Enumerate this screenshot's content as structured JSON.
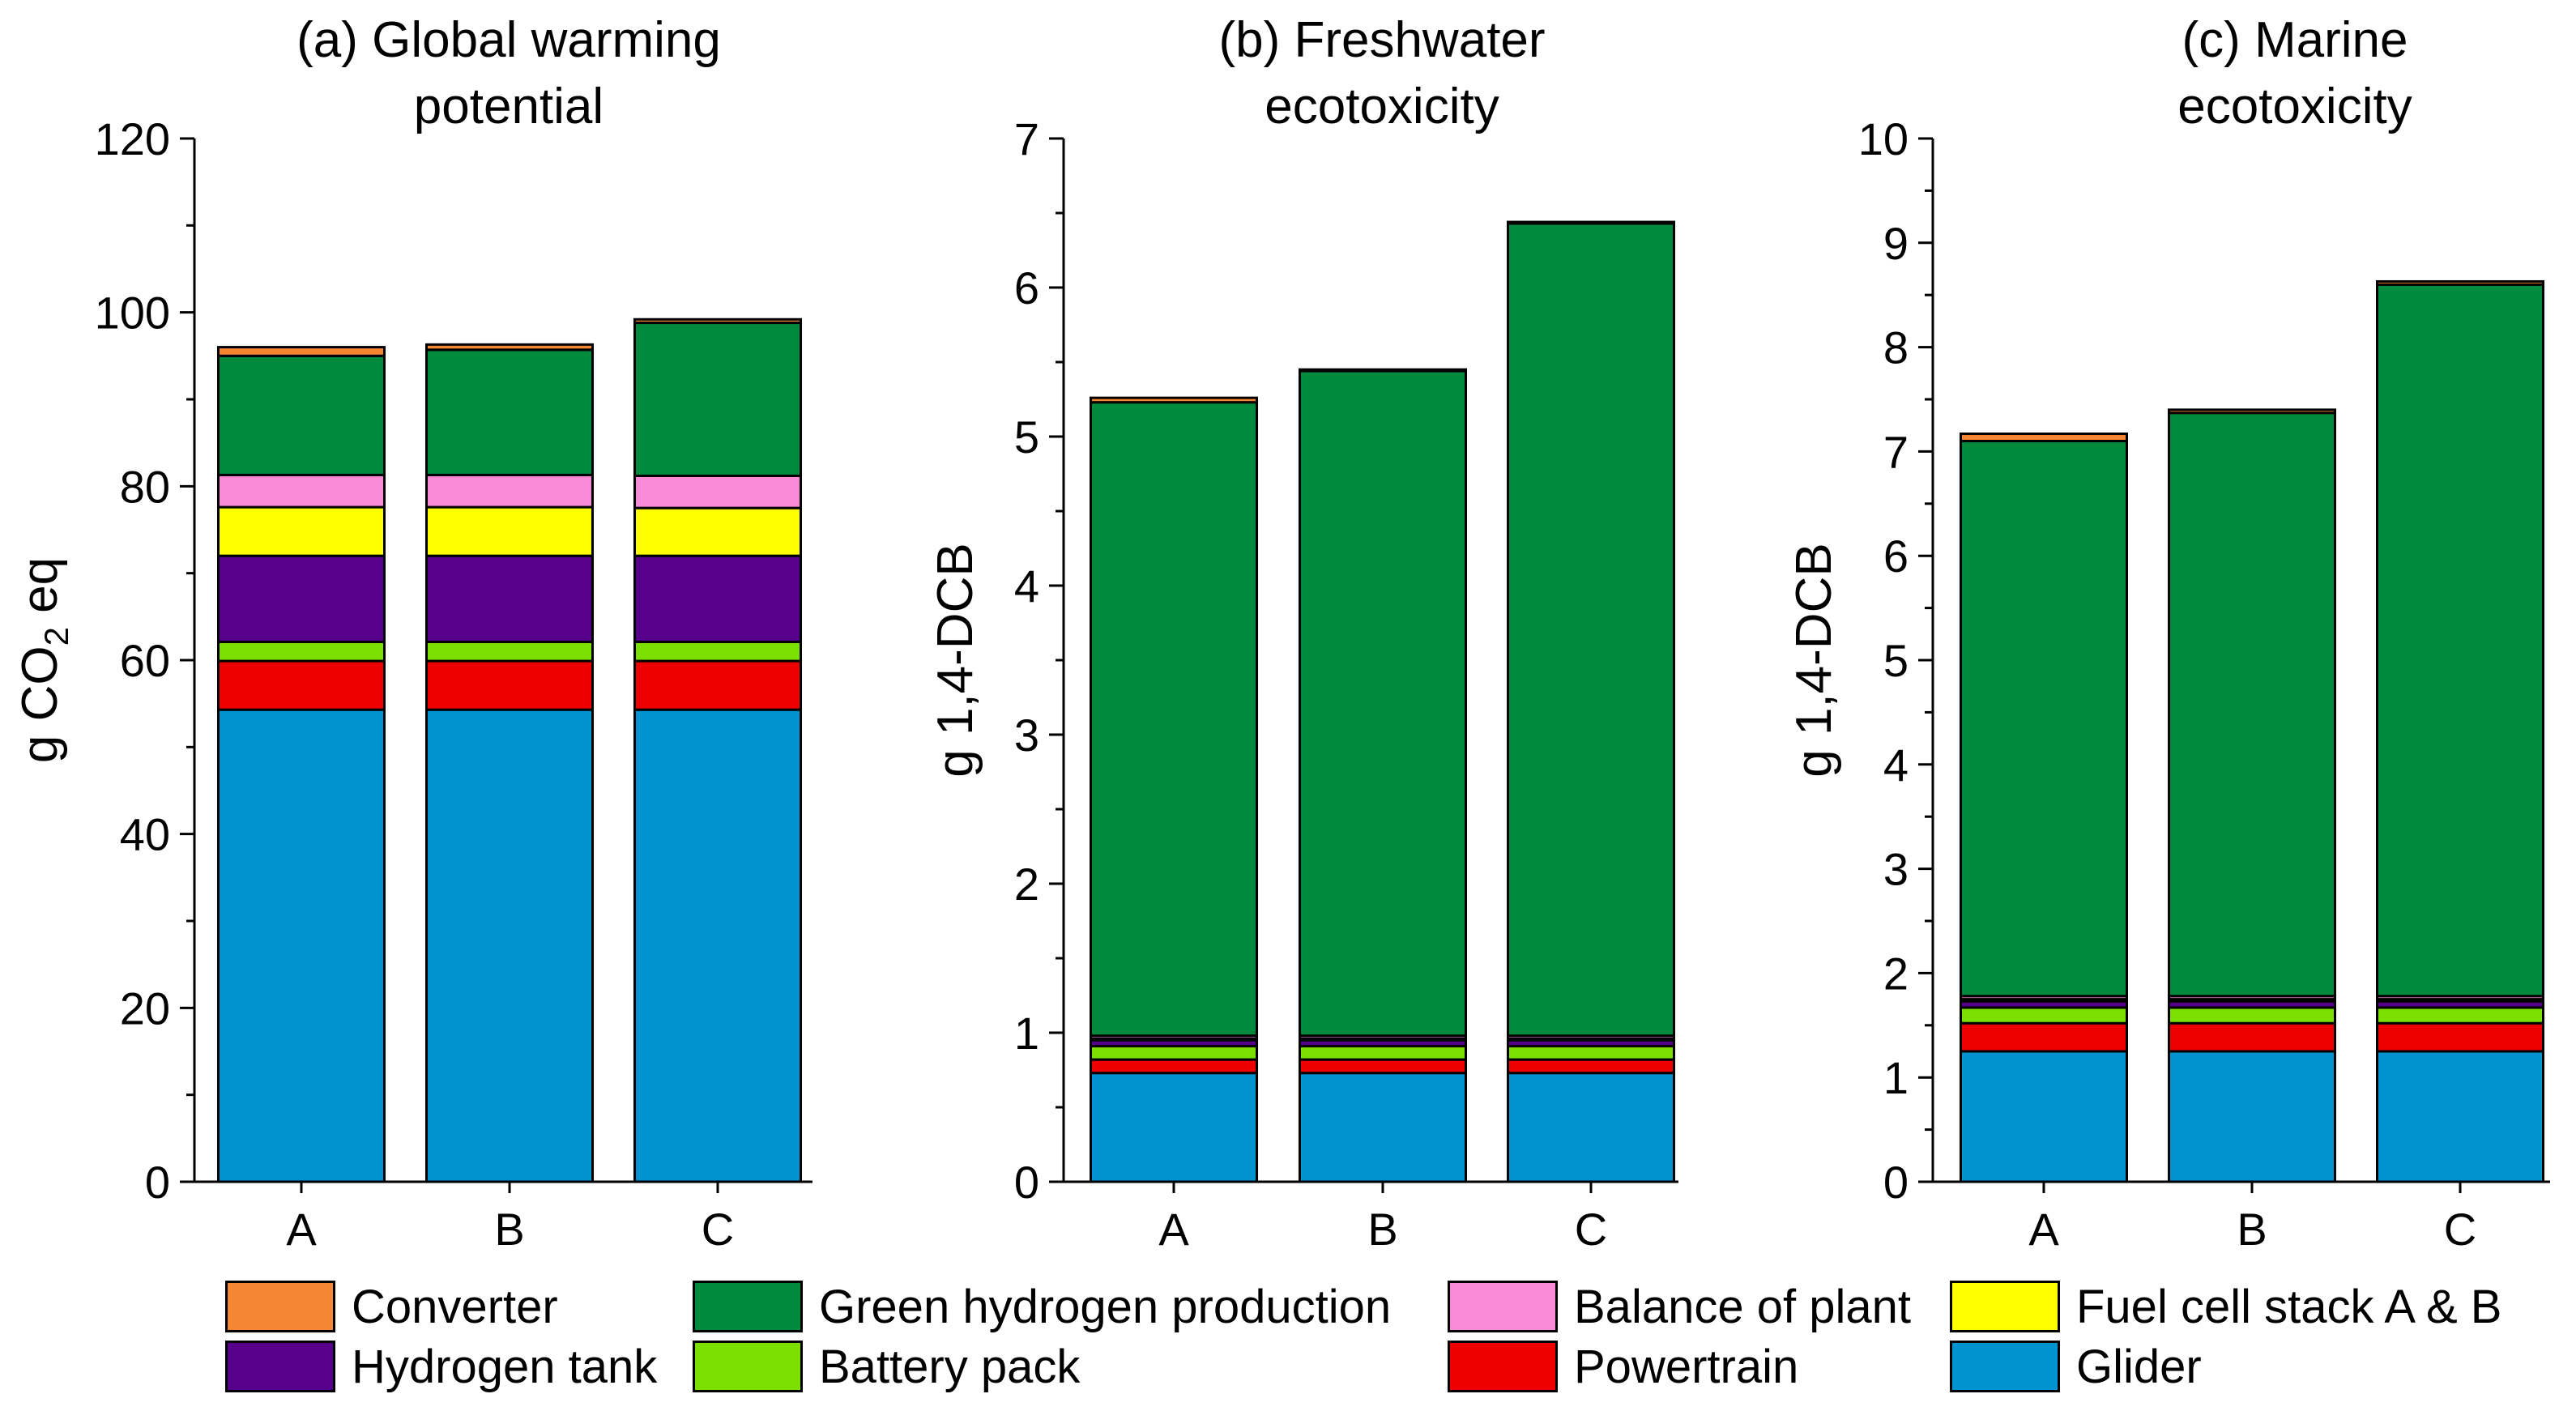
{
  "colors": {
    "Converter": "#f58634",
    "Green hydrogen production": "#008a3e",
    "Balance of plant": "#f88ad8",
    "Fuel cell stack A & B": "#ffff00",
    "Hydrogen tank": "#56008c",
    "Battery pack": "#7be000",
    "Powertrain": "#ee0000",
    "Glider": "#0093cf"
  },
  "legend": {
    "items": [
      {
        "label": "Converter",
        "key": "Converter"
      },
      {
        "label": "Green hydrogen production",
        "key": "Green hydrogen production"
      },
      {
        "label": "Balance of plant",
        "key": "Balance of plant"
      },
      {
        "label": "Fuel cell stack A & B",
        "key": "Fuel cell stack A & B"
      },
      {
        "label": "Hydrogen tank",
        "key": "Hydrogen tank"
      },
      {
        "label": "Battery pack",
        "key": "Battery pack"
      },
      {
        "label": "Powertrain",
        "key": "Powertrain"
      },
      {
        "label": "Glider",
        "key": "Glider"
      }
    ]
  },
  "chart_data": [
    {
      "type": "bar",
      "stacked": true,
      "title": [
        "(a) Global warming",
        "potential"
      ],
      "ylabel": "g CO2 eq",
      "ylabel_parts": {
        "before": "g CO",
        "sub": "2",
        "after": " eq"
      },
      "xlabel": "",
      "categories": [
        "A",
        "B",
        "C"
      ],
      "ylim": [
        0,
        120
      ],
      "yticks": [
        0,
        20,
        40,
        60,
        80,
        100,
        120
      ],
      "series": [
        {
          "name": "Glider",
          "values": [
            54.3,
            54.3,
            54.3
          ]
        },
        {
          "name": "Powertrain",
          "values": [
            5.6,
            5.6,
            5.6
          ]
        },
        {
          "name": "Battery pack",
          "values": [
            2.2,
            2.2,
            2.2
          ]
        },
        {
          "name": "Hydrogen tank",
          "values": [
            9.9,
            9.9,
            9.9
          ]
        },
        {
          "name": "Fuel cell stack A & B",
          "values": [
            5.6,
            5.6,
            5.5
          ]
        },
        {
          "name": "Balance of plant",
          "values": [
            3.7,
            3.7,
            3.7
          ]
        },
        {
          "name": "Green hydrogen production",
          "values": [
            13.7,
            14.4,
            17.6
          ]
        },
        {
          "name": "Converter",
          "values": [
            1.0,
            0.6,
            0.4
          ]
        }
      ]
    },
    {
      "type": "bar",
      "stacked": true,
      "title": [
        "(b) Freshwater",
        "ecotoxicity"
      ],
      "ylabel": "g 1,4-DCB",
      "xlabel": "",
      "categories": [
        "A",
        "B",
        "C"
      ],
      "ylim": [
        0,
        7
      ],
      "yticks": [
        0,
        1,
        2,
        3,
        4,
        5,
        6,
        7
      ],
      "series": [
        {
          "name": "Glider",
          "values": [
            0.73,
            0.73,
            0.73
          ]
        },
        {
          "name": "Powertrain",
          "values": [
            0.09,
            0.09,
            0.09
          ]
        },
        {
          "name": "Battery pack",
          "values": [
            0.09,
            0.09,
            0.09
          ]
        },
        {
          "name": "Hydrogen tank",
          "values": [
            0.04,
            0.04,
            0.04
          ]
        },
        {
          "name": "Fuel cell stack A & B",
          "values": [
            0.01,
            0.01,
            0.01
          ]
        },
        {
          "name": "Balance of plant",
          "values": [
            0.02,
            0.02,
            0.02
          ]
        },
        {
          "name": "Green hydrogen production",
          "values": [
            4.25,
            4.46,
            5.45
          ]
        },
        {
          "name": "Converter",
          "values": [
            0.03,
            0.01,
            0.01
          ]
        }
      ]
    },
    {
      "type": "bar",
      "stacked": true,
      "title": [
        "(c) Marine",
        "ecotoxicity"
      ],
      "ylabel": "g 1,4-DCB",
      "xlabel": "",
      "categories": [
        "A",
        "B",
        "C"
      ],
      "ylim": [
        0,
        10
      ],
      "yticks": [
        0,
        1,
        2,
        3,
        4,
        5,
        6,
        7,
        8,
        9,
        10
      ],
      "series": [
        {
          "name": "Glider",
          "values": [
            1.25,
            1.25,
            1.25
          ]
        },
        {
          "name": "Powertrain",
          "values": [
            0.27,
            0.27,
            0.27
          ]
        },
        {
          "name": "Battery pack",
          "values": [
            0.15,
            0.15,
            0.15
          ]
        },
        {
          "name": "Hydrogen tank",
          "values": [
            0.06,
            0.06,
            0.06
          ]
        },
        {
          "name": "Fuel cell stack A & B",
          "values": [
            0.02,
            0.02,
            0.02
          ]
        },
        {
          "name": "Balance of plant",
          "values": [
            0.03,
            0.03,
            0.03
          ]
        },
        {
          "name": "Green hydrogen production",
          "values": [
            5.32,
            5.59,
            6.82
          ]
        },
        {
          "name": "Converter",
          "values": [
            0.07,
            0.03,
            0.03
          ]
        }
      ]
    }
  ]
}
